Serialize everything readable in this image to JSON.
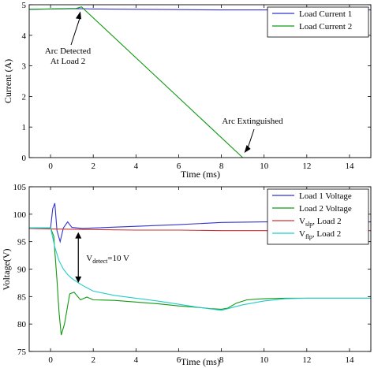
{
  "chart_data": [
    {
      "type": "line",
      "xlabel": "Time (ms)",
      "ylabel": "Current (A)",
      "xlim": [
        -1,
        15
      ],
      "ylim": [
        0,
        5
      ],
      "xticks": [
        0,
        2,
        4,
        6,
        8,
        10,
        12,
        14
      ],
      "yticks": [
        0,
        1,
        2,
        3,
        4,
        5
      ],
      "legend_position": "top-right",
      "series": [
        {
          "name": "Load Current 1",
          "color": "#3333cc",
          "x": [
            -1,
            1.4,
            2,
            4,
            6,
            8,
            10,
            12,
            14,
            15
          ],
          "y": [
            4.85,
            4.87,
            4.86,
            4.85,
            4.84,
            4.83,
            4.83,
            4.83,
            4.83,
            4.83
          ]
        },
        {
          "name": "Load Current 2",
          "color": "#109910",
          "x": [
            -1,
            1.2,
            1.45,
            9.0,
            15
          ],
          "y": [
            4.85,
            4.88,
            4.93,
            0,
            0
          ]
        }
      ],
      "annotations": [
        {
          "text_lines": [
            "Arc Detected",
            "At Load 2"
          ],
          "arrow_to": [
            1.4,
            4.86
          ]
        },
        {
          "text_lines": [
            "Arc Extinguished"
          ],
          "arrow_to": [
            9.0,
            0.05
          ]
        }
      ]
    },
    {
      "type": "line",
      "xlabel": "Time (ms)",
      "ylabel": "Voltage(V)",
      "xlim": [
        -1,
        15
      ],
      "ylim": [
        75,
        105
      ],
      "xticks": [
        0,
        2,
        4,
        6,
        8,
        10,
        12,
        14
      ],
      "yticks": [
        75,
        80,
        85,
        90,
        95,
        100,
        105
      ],
      "legend_position": "top-right",
      "series": [
        {
          "name": "Load 1 Voltage",
          "color": "#3333cc",
          "x": [
            -1,
            0,
            0.1,
            0.2,
            0.3,
            0.45,
            0.6,
            0.8,
            1.0,
            1.5,
            2,
            4,
            6,
            8,
            10,
            12,
            14,
            15
          ],
          "y": [
            97.5,
            97.5,
            101,
            102,
            97,
            95,
            97.5,
            98.6,
            97.6,
            97.4,
            97.5,
            97.8,
            98.1,
            98.5,
            98.6,
            98.6,
            98.6,
            98.6
          ]
        },
        {
          "name": "Load 2 Voltage",
          "color": "#109910",
          "x": [
            -1,
            0,
            0.15,
            0.3,
            0.4,
            0.5,
            0.65,
            0.9,
            1.1,
            1.4,
            1.7,
            2,
            3,
            4,
            5,
            6,
            7,
            7.5,
            8,
            8.3,
            8.7,
            9.2,
            10,
            11,
            12,
            13,
            14,
            15
          ],
          "y": [
            97.5,
            97.5,
            96,
            88,
            82,
            78,
            80,
            85.5,
            85.8,
            84.4,
            84.9,
            84.4,
            84.3,
            84,
            83.7,
            83.3,
            83,
            82.8,
            82.7,
            82.9,
            83.8,
            84.4,
            84.6,
            84.7,
            84.7,
            84.7,
            84.7,
            84.7
          ]
        },
        {
          "name_main": "V",
          "name_sub": "slp",
          "name_rest": ", Load 2",
          "color": "#cc3333",
          "x": [
            -1,
            0,
            2,
            4,
            6,
            8,
            10,
            12,
            14,
            15
          ],
          "y": [
            97.4,
            97.3,
            97.2,
            97.1,
            97.1,
            97.0,
            97.0,
            97.0,
            97.0,
            97.0
          ]
        },
        {
          "name_main": "V",
          "name_sub": "flp",
          "name_rest": ", Load 2",
          "color": "#22cccc",
          "x": [
            -1,
            0,
            0.2,
            0.4,
            0.6,
            0.8,
            1.0,
            1.3,
            1.6,
            2.0,
            3,
            4,
            5,
            6,
            7,
            8,
            9,
            10,
            11,
            12,
            13,
            14,
            15
          ],
          "y": [
            97.5,
            97.5,
            94,
            91.5,
            90,
            89,
            88.3,
            87.5,
            86.8,
            86,
            85.2,
            84.7,
            84.2,
            83.6,
            83,
            82.5,
            83.5,
            84.2,
            84.6,
            84.7,
            84.7,
            84.7,
            84.7
          ]
        }
      ],
      "annotations": [
        {
          "text_main": "V",
          "text_sub": "detect",
          "text_rest": "=10 V",
          "double_arrow_x": 1.3,
          "double_arrow_y": [
            97.3,
            87.5
          ]
        }
      ]
    }
  ]
}
